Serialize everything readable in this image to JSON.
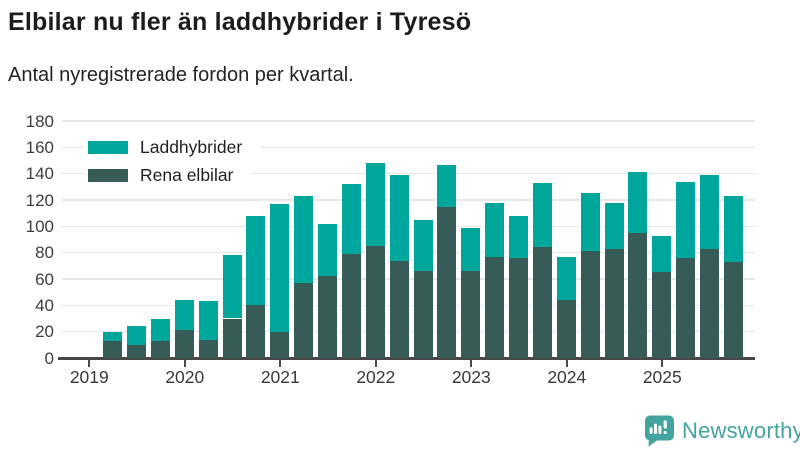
{
  "header": {
    "title": "Elbilar nu fler än laddhybrider i Tyresö",
    "subtitle": "Antal nyregistrerade fordon per kvartal."
  },
  "chart_data": {
    "type": "bar",
    "stacked": true,
    "title": "Elbilar nu fler än laddhybrider i Tyresö",
    "subtitle": "Antal nyregistrerade fordon per kvartal.",
    "categories": [
      "2019 Q2",
      "2019 Q3",
      "2019 Q4",
      "2020 Q1",
      "2020 Q2",
      "2020 Q3",
      "2020 Q4",
      "2021 Q1",
      "2021 Q2",
      "2021 Q3",
      "2021 Q4",
      "2022 Q1",
      "2022 Q2",
      "2022 Q3",
      "2022 Q4",
      "2023 Q1",
      "2023 Q2",
      "2023 Q3",
      "2023 Q4",
      "2024 Q1",
      "2024 Q2",
      "2024 Q3",
      "2024 Q4",
      "2025 Q1",
      "2025 Q2",
      "2025 Q3",
      "2025 Q4"
    ],
    "series": [
      {
        "name": "Laddhybrider",
        "color": "#00a59c",
        "values": [
          7,
          14,
          17,
          23,
          29,
          48,
          68,
          97,
          66,
          40,
          53,
          63,
          65,
          39,
          32,
          33,
          41,
          32,
          49,
          33,
          44,
          35,
          46,
          28,
          58,
          56,
          50
        ]
      },
      {
        "name": "Rena elbilar",
        "color": "#375c57",
        "values": [
          13,
          10,
          13,
          21,
          14,
          30,
          40,
          20,
          57,
          62,
          79,
          85,
          74,
          66,
          115,
          66,
          77,
          76,
          84,
          44,
          81,
          83,
          95,
          65,
          76,
          83,
          73
        ]
      }
    ],
    "stack_order_bottom_to_top": [
      "Rena elbilar",
      "Laddhybrider"
    ],
    "totals": [
      20,
      24,
      30,
      44,
      43,
      78,
      108,
      117,
      123,
      102,
      132,
      148,
      139,
      105,
      147,
      99,
      118,
      108,
      133,
      77,
      125,
      118,
      141,
      93,
      134,
      139,
      123
    ],
    "xlabel": "",
    "ylabel": "",
    "ylim": [
      0,
      180
    ],
    "yticks": [
      0,
      20,
      40,
      60,
      80,
      100,
      120,
      140,
      160,
      180
    ],
    "x_tick_labels": [
      "2019",
      "2020",
      "2021",
      "2022",
      "2023",
      "2024",
      "2025"
    ],
    "grid": "horizontal",
    "legend_position": "inside-top-left"
  },
  "legend": {
    "items": [
      {
        "label": "Laddhybrider",
        "color": "#00a59c"
      },
      {
        "label": "Rena elbilar",
        "color": "#375c57"
      }
    ]
  },
  "footer": {
    "brand": "Newsworthy",
    "logo_icon": "bar-chart-speech-bubble-icon"
  },
  "colors": {
    "laddhybrider": "#00a59c",
    "rena_elbilar": "#375c57",
    "brand": "#43a39e",
    "axis_line": "#474747",
    "gridline": "#e7e7e7",
    "title_text": "#1c1c1c"
  }
}
